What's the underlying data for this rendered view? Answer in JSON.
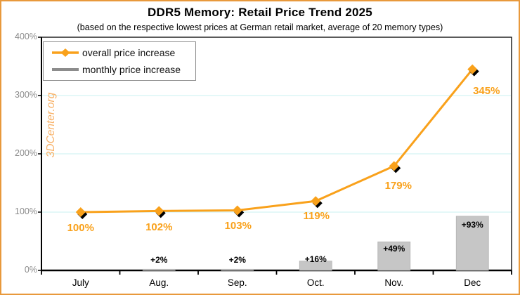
{
  "header": {
    "title": "DDR5 Memory: Retail Price Trend 2025",
    "subtitle": "(based on the respective lowest prices at German retail market, average of 20 memory types)"
  },
  "watermark": "3DCenter.org",
  "legend": {
    "items": [
      {
        "label": "overall price increase",
        "marker": "diamond-line-icon",
        "color": "#f9a11b"
      },
      {
        "label": "monthly price increase",
        "marker": "line-icon",
        "color": "#8c8c8c"
      }
    ]
  },
  "colors": {
    "accent_orange": "#f9a11b",
    "border_orange": "#e8993c",
    "watermark_orange": "#f8b269",
    "gridline_cyan": "#d4f3f3",
    "bar_gray": "#c6c6c6",
    "bar_edge_gray": "#b2b2b2",
    "legend_gray": "#8c8c8c",
    "axis_text_gray": "#8c8c8c",
    "marker_shadow": "#000000"
  },
  "chart_data": {
    "type": "line+bar",
    "title": "DDR5 Memory: Retail Price Trend 2025",
    "subtitle": "(based on the respective lowest prices at German retail market, average of 20 memory types)",
    "categories": [
      "July",
      "Aug.",
      "Sep.",
      "Oct.",
      "Nov.",
      "Dec"
    ],
    "series": [
      {
        "name": "overall price increase",
        "type": "line",
        "marker": "diamond",
        "color": "#f9a11b",
        "values": [
          100,
          102,
          103,
          119,
          179,
          345
        ],
        "point_labels": [
          "100%",
          "102%",
          "103%",
          "119%",
          "179%",
          "345%"
        ]
      },
      {
        "name": "monthly price increase",
        "type": "bar",
        "color": "#c6c6c6",
        "values": [
          null,
          2,
          2,
          16,
          49,
          93
        ],
        "point_labels": [
          null,
          "+2%",
          "+2%",
          "+16%",
          "+49%",
          "+93%"
        ]
      }
    ],
    "ylim": [
      0,
      400
    ],
    "yticks": [
      {
        "value": 0,
        "label": "0%"
      },
      {
        "value": 100,
        "label": "100%"
      },
      {
        "value": 200,
        "label": "200%"
      },
      {
        "value": 300,
        "label": "300%"
      },
      {
        "value": 400,
        "label": "400%"
      }
    ],
    "grid": "horizontal",
    "legend_position": "top-left"
  }
}
